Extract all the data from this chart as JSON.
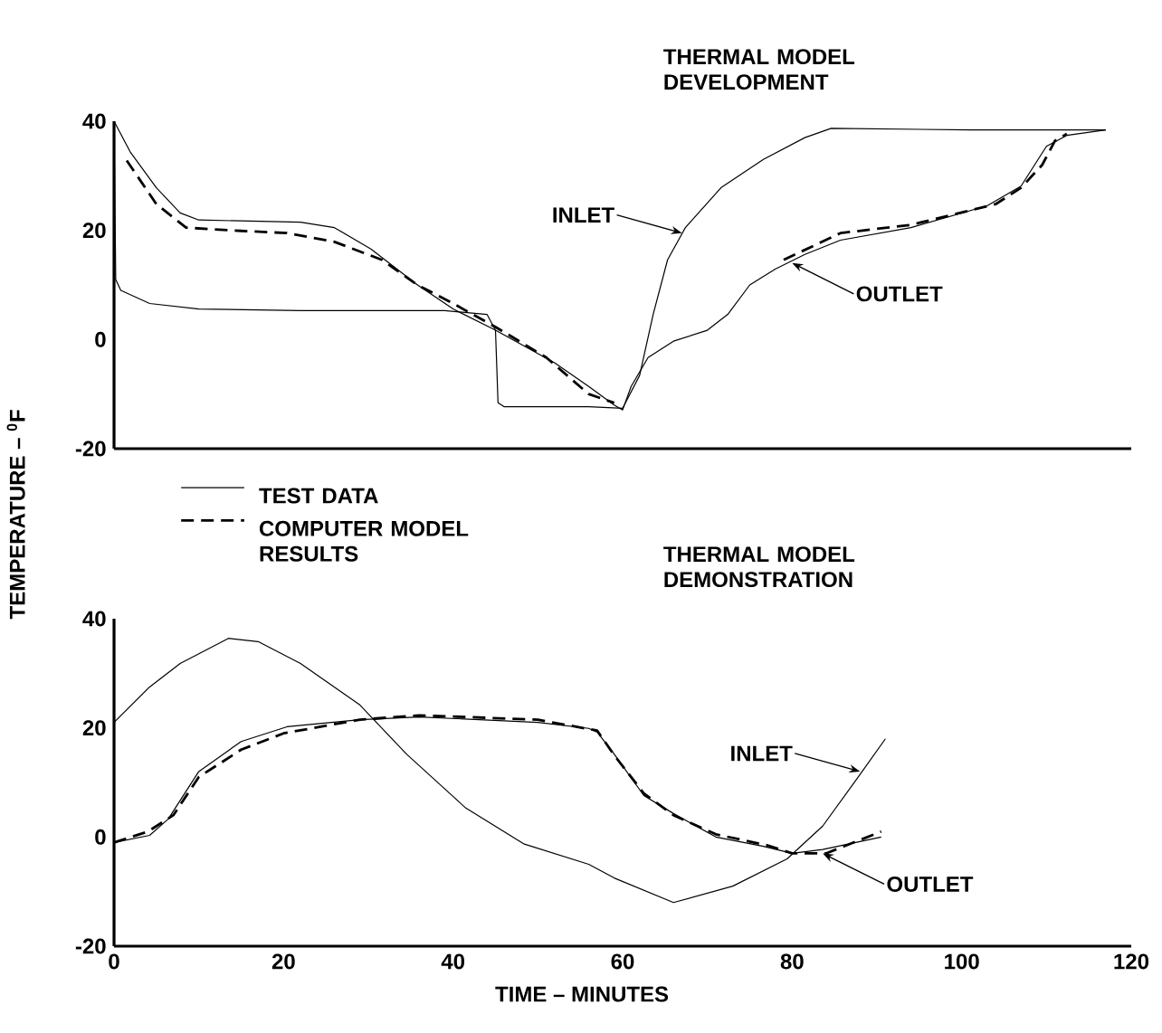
{
  "chart_data": [
    {
      "type": "line",
      "title": "THERMAL MODEL DEVELOPMENT",
      "ylabel": "TEMPERATURE – $^{0}$F",
      "xlim": [
        0,
        120
      ],
      "ylim": [
        -20,
        40
      ],
      "yticks": [
        -20,
        0,
        20,
        40
      ],
      "tick_labels": "y",
      "annotations": [
        {
          "text": "INLET",
          "x": 67,
          "y": 19.5
        },
        {
          "text": "OUTLET",
          "x": 80,
          "y": 14
        }
      ],
      "series": [
        {
          "color": "#000000",
          "line_style": "solid",
          "x": [
            0,
            0.2,
            0.8,
            4.2,
            10,
            22,
            39,
            44,
            45,
            45.3,
            46,
            56,
            60,
            62,
            63.6,
            65.3,
            67.4,
            71.6,
            76.6,
            81.5,
            84.6,
            101,
            117
          ],
          "values": [
            40,
            11,
            9,
            6.6,
            5.6,
            5.3,
            5.3,
            4.6,
            1.7,
            -11.6,
            -12.3,
            -12.3,
            -12.6,
            -6.6,
            4.6,
            14.6,
            20.5,
            27.8,
            33,
            37,
            38.7,
            38.4,
            38.4
          ]
        },
        {
          "color": "#000000",
          "line_style": "solid",
          "x": [
            0,
            1.9,
            5,
            7.8,
            10,
            22,
            26,
            30.3,
            35.8,
            40,
            45,
            52,
            56,
            59,
            60,
            61,
            63,
            66,
            70,
            72.4,
            75,
            78,
            81.5,
            85.7,
            94,
            103,
            107,
            110,
            112.4,
            117
          ],
          "values": [
            40,
            34.4,
            27.8,
            23.2,
            21.9,
            21.5,
            20.5,
            16.6,
            10,
            5.6,
            1.7,
            -4.3,
            -8.6,
            -12,
            -12.9,
            -8.6,
            -3.3,
            -0.3,
            1.7,
            4.6,
            10,
            12.9,
            15.6,
            18.2,
            20.5,
            24.5,
            28.1,
            35.4,
            37.4,
            38.4
          ]
        },
        {
          "color": "#000000",
          "line_style": "dashed",
          "x": [
            1.5,
            5,
            8.5,
            15,
            20.4,
            26,
            31.6,
            35.8,
            40,
            45,
            51,
            56,
            59,
            70,
            79,
            85.7,
            94,
            104,
            107,
            109.5,
            111,
            112.4
          ],
          "values": [
            32.8,
            24.8,
            20.5,
            19.9,
            19.5,
            17.9,
            14.6,
            10,
            6.6,
            2.3,
            -3.3,
            -10,
            -11.6,
            null,
            14.6,
            19.5,
            21,
            24.8,
            27.8,
            32,
            36.4,
            37.7
          ]
        }
      ]
    },
    {
      "type": "line",
      "title": "THERMAL MODEL DEMONSTRATION",
      "xlabel": "TIME – MINUTES",
      "xlim": [
        0,
        120
      ],
      "ylim": [
        -20,
        40
      ],
      "xticks": [
        0,
        20,
        40,
        60,
        80,
        100,
        120
      ],
      "yticks": [
        -20,
        0,
        20,
        40
      ],
      "legend": "top left",
      "annotations": [
        {
          "text": "INLET",
          "x": 88,
          "y": 12
        },
        {
          "text": "OUTLET",
          "x": 83.6,
          "y": -3
        }
      ],
      "series": [
        {
          "color": "#000000",
          "line_style": "solid",
          "x": [
            0,
            4.2,
            7.8,
            13.5,
            17,
            22,
            29,
            34.5,
            41.5,
            48.4,
            56,
            59,
            66,
            73,
            79.4,
            83.6,
            87.8,
            91
          ],
          "values": [
            21,
            27.5,
            31.8,
            36.4,
            35.8,
            31.8,
            24.2,
            15.2,
            5.3,
            -1.3,
            -5,
            -7.5,
            -12,
            -9,
            -4,
            2,
            11,
            18
          ]
        },
        {
          "name": "TEST DATA",
          "color": "#000000",
          "line_style": "solid",
          "x": [
            0,
            4.2,
            6.4,
            10,
            15,
            20.4,
            29,
            36,
            50,
            56,
            57,
            59,
            62.5,
            66,
            71,
            76.6,
            80,
            83.6,
            90.5
          ],
          "values": [
            -1,
            0.3,
            3.3,
            12,
            17.5,
            20.2,
            21.5,
            22,
            21,
            19.9,
            19.2,
            15.2,
            7.6,
            4.3,
            0,
            -1.7,
            -3,
            -2.3,
            0
          ]
        },
        {
          "name": "COMPUTER MODEL RESULTS",
          "color": "#000000",
          "line_style": "dashed",
          "x": [
            0,
            4,
            7,
            10,
            15,
            20,
            29,
            36,
            50,
            57,
            59,
            62.5,
            66,
            71,
            77,
            80,
            84,
            90.5
          ],
          "values": [
            -1,
            1,
            4,
            11,
            16,
            19,
            21.5,
            22.3,
            21.5,
            19.5,
            15,
            8,
            4,
            0.5,
            -1.5,
            -3,
            -3,
            1
          ]
        }
      ]
    }
  ]
}
